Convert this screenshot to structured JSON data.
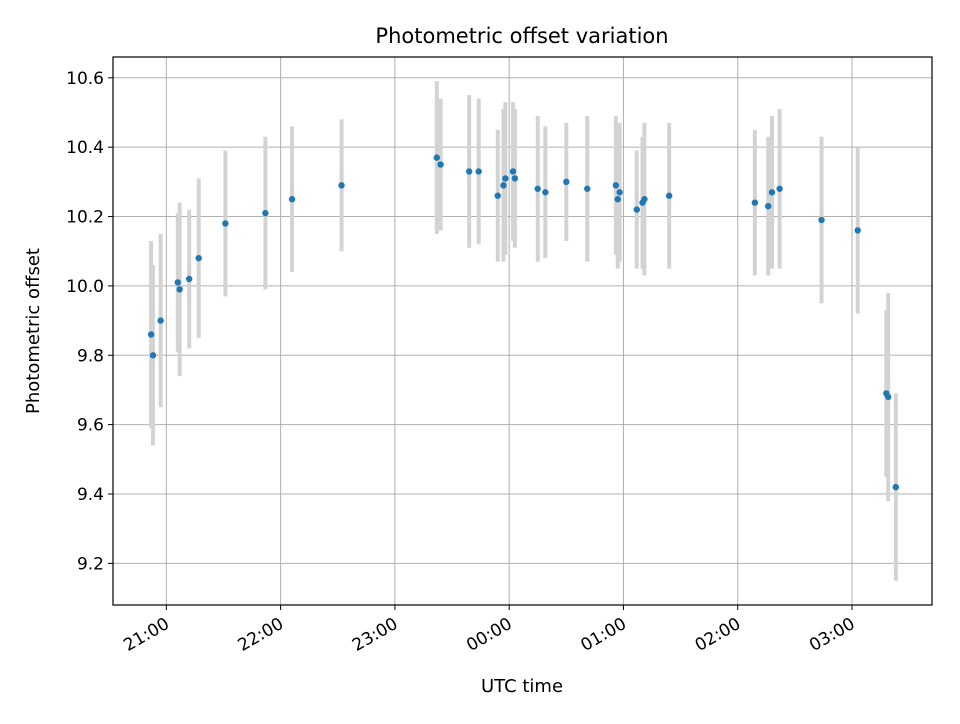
{
  "chart_data": {
    "type": "scatter",
    "title": "Photometric offset variation",
    "xlabel": "UTC time",
    "ylabel": "Photometric offset",
    "xlim": [
      "20:32",
      "03:42"
    ],
    "ylim": [
      9.08,
      10.66
    ],
    "x_ticks": [
      "21:00",
      "22:00",
      "23:00",
      "00:00",
      "01:00",
      "02:00",
      "03:00"
    ],
    "y_ticks": [
      9.2,
      9.4,
      9.6,
      9.8,
      10.0,
      10.2,
      10.4,
      10.6
    ],
    "y_tick_labels": [
      "9.2",
      "9.4",
      "9.6",
      "9.8",
      "10.0",
      "10.2",
      "10.4",
      "10.6"
    ],
    "grid": true,
    "colors": {
      "marker": "#1f77b4",
      "errorbar": "#d3d3d3",
      "grid": "#b0b0b0"
    },
    "points": [
      {
        "t": "20:52",
        "y": 9.86,
        "err": 0.27
      },
      {
        "t": "20:53",
        "y": 9.8,
        "err": 0.26
      },
      {
        "t": "20:57",
        "y": 9.9,
        "err": 0.25
      },
      {
        "t": "21:06",
        "y": 10.01,
        "err": 0.2
      },
      {
        "t": "21:07",
        "y": 9.99,
        "err": 0.25
      },
      {
        "t": "21:12",
        "y": 10.02,
        "err": 0.2
      },
      {
        "t": "21:17",
        "y": 10.08,
        "err": 0.23
      },
      {
        "t": "21:31",
        "y": 10.18,
        "err": 0.21
      },
      {
        "t": "21:52",
        "y": 10.21,
        "err": 0.22
      },
      {
        "t": "22:06",
        "y": 10.25,
        "err": 0.21
      },
      {
        "t": "22:32",
        "y": 10.29,
        "err": 0.19
      },
      {
        "t": "23:22",
        "y": 10.37,
        "err": 0.22
      },
      {
        "t": "23:24",
        "y": 10.35,
        "err": 0.19
      },
      {
        "t": "23:39",
        "y": 10.33,
        "err": 0.22
      },
      {
        "t": "23:44",
        "y": 10.33,
        "err": 0.21
      },
      {
        "t": "23:54",
        "y": 10.26,
        "err": 0.19
      },
      {
        "t": "23:57",
        "y": 10.29,
        "err": 0.22
      },
      {
        "t": "23:58",
        "y": 10.31,
        "err": 0.22
      },
      {
        "t": "00:02",
        "y": 10.33,
        "err": 0.2
      },
      {
        "t": "00:03",
        "y": 10.31,
        "err": 0.2
      },
      {
        "t": "00:15",
        "y": 10.28,
        "err": 0.21
      },
      {
        "t": "00:19",
        "y": 10.27,
        "err": 0.19
      },
      {
        "t": "00:30",
        "y": 10.3,
        "err": 0.17
      },
      {
        "t": "00:41",
        "y": 10.28,
        "err": 0.21
      },
      {
        "t": "00:56",
        "y": 10.29,
        "err": 0.2
      },
      {
        "t": "00:57",
        "y": 10.25,
        "err": 0.2
      },
      {
        "t": "00:58",
        "y": 10.27,
        "err": 0.2
      },
      {
        "t": "01:07",
        "y": 10.22,
        "err": 0.17
      },
      {
        "t": "01:10",
        "y": 10.24,
        "err": 0.19
      },
      {
        "t": "01:11",
        "y": 10.25,
        "err": 0.22
      },
      {
        "t": "01:24",
        "y": 10.26,
        "err": 0.21
      },
      {
        "t": "02:09",
        "y": 10.24,
        "err": 0.21
      },
      {
        "t": "02:16",
        "y": 10.23,
        "err": 0.2
      },
      {
        "t": "02:18",
        "y": 10.27,
        "err": 0.22
      },
      {
        "t": "02:22",
        "y": 10.28,
        "err": 0.23
      },
      {
        "t": "02:44",
        "y": 10.19,
        "err": 0.24
      },
      {
        "t": "03:03",
        "y": 10.16,
        "err": 0.24
      },
      {
        "t": "03:18",
        "y": 9.69,
        "err": 0.24
      },
      {
        "t": "03:19",
        "y": 9.68,
        "err": 0.3
      },
      {
        "t": "03:23",
        "y": 9.42,
        "err": 0.27
      }
    ]
  }
}
